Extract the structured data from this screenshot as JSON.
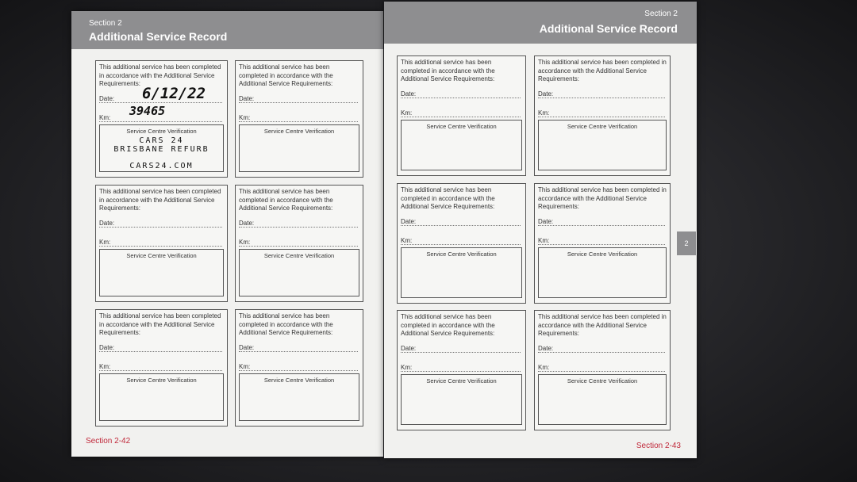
{
  "pages": [
    {
      "section": "Section 2",
      "title": "Additional Service Record",
      "footer": "Section 2-42",
      "boxes": [
        {
          "text": "This additional service has been completed in accordance with the Additional Service Requirements:",
          "date_label": "Date:",
          "km_label": "Km:",
          "verification": "Service Centre Verification",
          "handwritten_date": "6/12/22",
          "handwritten_km": "39465",
          "stamp": [
            "CARS 24",
            "BRISBANE REFURB",
            "CARS24.COM"
          ]
        },
        {
          "text": "This additional service has been completed in accordance with the Additional Service Requirements:",
          "date_label": "Date:",
          "km_label": "Km:",
          "verification": "Service Centre Verification"
        },
        {
          "text": "This additional service has been completed in accordance with the Additional Service Requirements:",
          "date_label": "Date:",
          "km_label": "Km:",
          "verification": "Service Centre Verification"
        },
        {
          "text": "This additional service has been completed in accordance with the Additional Service Requirements:",
          "date_label": "Date:",
          "km_label": "Km:",
          "verification": "Service Centre Verification"
        },
        {
          "text": "This additional service has been completed in accordance with the Additional Service Requirements:",
          "date_label": "Date:",
          "km_label": "Km:",
          "verification": "Service Centre Verification"
        },
        {
          "text": "This additional service has been completed in accordance with the Additional Service Requirements:",
          "date_label": "Date:",
          "km_label": "Km:",
          "verification": "Service Centre Verification"
        }
      ]
    },
    {
      "section": "Section 2",
      "title": "Additional Service Record",
      "footer": "Section 2-43",
      "tab": "2",
      "boxes": [
        {
          "text": "This additional service has been completed in accordance with the Additional Service Requirements:",
          "date_label": "Date:",
          "km_label": "Km:",
          "verification": "Service Centre Verification"
        },
        {
          "text": "This additional service has been completed in accordance with the Additional Service Requirements:",
          "date_label": "Date:",
          "km_label": "Km:",
          "verification": "Service Centre Verification"
        },
        {
          "text": "This additional service has been completed in accordance with the Additional Service Requirements:",
          "date_label": "Date:",
          "km_label": "Km:",
          "verification": "Service Centre Verification"
        },
        {
          "text": "This additional service has been completed in accordance with the Additional Service Requirements:",
          "date_label": "Date:",
          "km_label": "Km:",
          "verification": "Service Centre Verification"
        },
        {
          "text": "This additional service has been completed in accordance with the Additional Service Requirements:",
          "date_label": "Date:",
          "km_label": "Km:",
          "verification": "Service Centre Verification"
        },
        {
          "text": "This additional service has been completed in accordance with the Additional Service Requirements:",
          "date_label": "Date:",
          "km_label": "Km:",
          "verification": "Service Centre Verification"
        }
      ]
    }
  ]
}
